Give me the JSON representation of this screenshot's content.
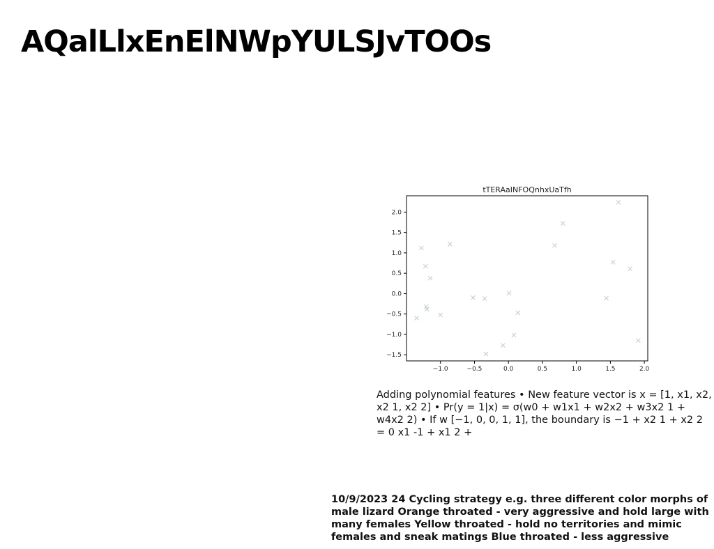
{
  "page": {
    "title": "AQalLlxEnElNWpYULSJvTOOs",
    "body_text": "Adding polynomial features • New feature vector is x = [1, x1, x2, x2 1, x2 2] • Pr(y = 1|x) = σ(w0 + w1x1 + w2x2 + w3x2 1 + w4x2 2) • If w [−1, 0, 0, 1, 1], the boundary is −1 + x2 1 + x2 2 = 0 x1 -1 + x1 2 +",
    "footer_note": "10/9/2023 24 Cycling strategy e.g. three different color morphs of male lizard Orange throated - very aggressive and hold large with many females Yellow throated - hold no territories and mimic females and sneak matings Blue throated - less aggressive"
  },
  "colors": {
    "marker": "#c5cfd0",
    "axis": "#000000"
  },
  "chart_data": {
    "type": "scatter",
    "title": "tTERAaINFOQnhxUaTfh",
    "xlabel": "",
    "ylabel": "",
    "marker": "x",
    "grid": false,
    "xlim": [
      -1.5,
      2.05
    ],
    "ylim": [
      -1.65,
      2.4
    ],
    "xticks": [
      -1.0,
      -0.5,
      0.0,
      0.5,
      1.0,
      1.5,
      2.0
    ],
    "xtick_labels": [
      "−1.0",
      "−0.5",
      "0.0",
      "0.5",
      "1.0",
      "1.5",
      "2.0"
    ],
    "yticks": [
      -1.5,
      -1.0,
      -0.5,
      0.0,
      0.5,
      1.0,
      1.5,
      2.0
    ],
    "ytick_labels": [
      "−1.5",
      "−1.0",
      "−0.5",
      "0.0",
      "0.5",
      "1.0",
      "1.5",
      "2.0"
    ],
    "points": [
      {
        "x": -1.28,
        "y": 1.12
      },
      {
        "x": -1.22,
        "y": 0.67
      },
      {
        "x": -1.15,
        "y": 0.38
      },
      {
        "x": -1.21,
        "y": -0.32
      },
      {
        "x": -1.2,
        "y": -0.38
      },
      {
        "x": -1.35,
        "y": -0.6
      },
      {
        "x": -1.0,
        "y": -0.52
      },
      {
        "x": -0.86,
        "y": 1.21
      },
      {
        "x": -0.52,
        "y": -0.1
      },
      {
        "x": -0.35,
        "y": -0.12
      },
      {
        "x": -0.33,
        "y": -1.48
      },
      {
        "x": -0.08,
        "y": -1.27
      },
      {
        "x": 0.01,
        "y": 0.01
      },
      {
        "x": 0.08,
        "y": -1.02
      },
      {
        "x": 0.14,
        "y": -0.47
      },
      {
        "x": 0.68,
        "y": 1.18
      },
      {
        "x": 0.8,
        "y": 1.72
      },
      {
        "x": 1.44,
        "y": -0.11
      },
      {
        "x": 1.54,
        "y": 0.77
      },
      {
        "x": 1.62,
        "y": 2.24
      },
      {
        "x": 1.79,
        "y": 0.61
      },
      {
        "x": 1.91,
        "y": -1.15
      }
    ]
  }
}
